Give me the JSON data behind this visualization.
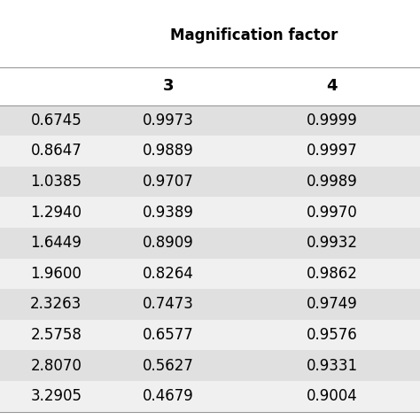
{
  "header_main": "Magnification factor",
  "col_headers": [
    "3",
    "4"
  ],
  "row_labels": [
    "0.6745",
    "0.8647",
    "1.0385",
    "1.2940",
    "1.6449",
    "1.9600",
    "2.3263",
    "2.5758",
    "2.8070",
    "3.2905"
  ],
  "col1_values": [
    "0.9973",
    "0.9889",
    "0.9707",
    "0.9389",
    "0.8909",
    "0.8264",
    "0.7473",
    "0.6577",
    "0.5627",
    "0.4679"
  ],
  "col2_values": [
    "0.9999",
    "0.9997",
    "0.9989",
    "0.9970",
    "0.9932",
    "0.9862",
    "0.9749",
    "0.9576",
    "0.9331",
    "0.9004"
  ],
  "row_bg_odd": "#e0e0e0",
  "row_bg_even": "#f0f0f0",
  "header_bg": "#ffffff",
  "text_color": "#000000",
  "border_color": "#999999",
  "title_fontsize": 12,
  "header_fontsize": 13,
  "cell_fontsize": 12
}
